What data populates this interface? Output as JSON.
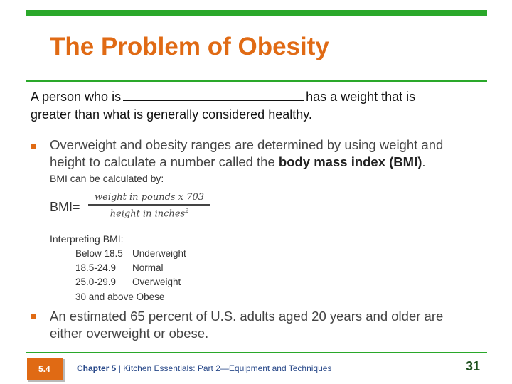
{
  "slide": {
    "title": "The Problem of Obesity",
    "intro": {
      "before_blank": "A person who is",
      "after_blank": "has a weight that is",
      "line2": "greater than what is generally considered healthy."
    },
    "bullet1": {
      "line1": "Overweight and obesity ranges are determined by using weight and",
      "line2_prefix": "height to calculate a number called the ",
      "line2_bold": "body mass index (BMI)",
      "line2_suffix": "."
    },
    "bmi": {
      "intro": "BMI can be calculated by:",
      "label": "BMI=",
      "numerator": "weight in pounds x 703",
      "denominator": "height in inches",
      "exponent": "2"
    },
    "interpreting": {
      "heading": "Interpreting BMI:",
      "rows": [
        {
          "range": "Below 18.5",
          "category": "Underweight"
        },
        {
          "range": "18.5-24.9",
          "category": "Normal"
        },
        {
          "range": "25.0-29.9",
          "category": "Overweight"
        },
        {
          "range": "30 and above",
          "category": "Obese"
        }
      ]
    },
    "bullet2": {
      "line1": "An estimated 65 percent of U.S. adults aged 20 years and older are",
      "line2": "either overweight or obese."
    }
  },
  "footer": {
    "section_badge": "5.4",
    "chapter_bold": "Chapter 5",
    "separator": " | ",
    "chapter_title": "Kitchen Essentials: Part 2—Equipment and Techniques",
    "page_number": "31"
  },
  "colors": {
    "accent_green": "#2aa82a",
    "title_orange": "#e06a14",
    "footer_blue": "#2a4a8a",
    "page_number_green": "#1c4f1c"
  }
}
